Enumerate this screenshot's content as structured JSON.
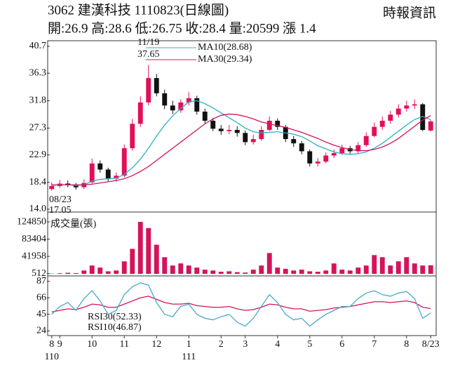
{
  "header": {
    "title": "3062  建漢科技 1110823(日線圖)",
    "source": "時報資訊",
    "info": "開:26.9 高:28.6 低:26.75 收:28.4 量:20599 漲 1.4"
  },
  "chart_data": [
    {
      "type": "candlestick",
      "up_color": "#e0105a",
      "down_color": "#111111",
      "ylim": [
        14.0,
        40.7
      ],
      "yticks": [
        {
          "value": 14.0,
          "label": "14.0"
        },
        18.4,
        22.9,
        27.3,
        31.8,
        36.3,
        40.7
      ],
      "open": [
        17.3,
        17.8,
        18.2,
        18.0,
        17.6,
        18.4,
        21.5,
        20.5,
        19.0,
        19.5,
        24.0,
        28.0,
        31.5,
        35.5,
        33.0,
        31.0,
        30.2,
        31.5,
        32.2,
        30.0,
        28.5,
        27.2,
        26.8,
        27.0,
        26.5,
        25.0,
        25.5,
        27.0,
        28.5,
        27.5,
        25.5,
        24.8,
        23.5,
        21.5,
        21.8,
        22.8,
        23.2,
        24.0,
        23.5,
        24.5,
        26.0,
        27.5,
        28.5,
        29.5,
        30.5,
        31.0,
        31.2,
        26.9
      ],
      "high": [
        18.4,
        18.8,
        18.7,
        18.3,
        18.9,
        22.3,
        22.0,
        20.8,
        20.0,
        24.6,
        28.8,
        32.5,
        37.65,
        36.2,
        33.6,
        31.8,
        32.0,
        33.2,
        32.6,
        30.5,
        29.0,
        27.8,
        27.8,
        27.6,
        26.9,
        26.2,
        27.6,
        29.2,
        28.9,
        27.8,
        26.0,
        25.2,
        23.8,
        22.4,
        23.3,
        23.8,
        24.6,
        24.4,
        25.0,
        26.6,
        28.2,
        29.2,
        30.1,
        31.2,
        31.8,
        32.0,
        31.4,
        28.6
      ],
      "low": [
        17.05,
        17.5,
        17.6,
        17.2,
        17.3,
        18.2,
        20.0,
        18.6,
        18.5,
        19.2,
        23.6,
        27.5,
        31.0,
        32.5,
        30.4,
        29.6,
        29.8,
        31.0,
        29.5,
        28.0,
        26.8,
        26.2,
        26.3,
        25.9,
        24.5,
        24.6,
        25.2,
        26.8,
        27.0,
        25.0,
        24.2,
        23.0,
        21.0,
        21.0,
        21.5,
        22.4,
        22.9,
        23.0,
        23.2,
        24.2,
        25.8,
        27.0,
        28.0,
        29.0,
        30.0,
        30.4,
        26.8,
        26.75
      ],
      "close": [
        17.8,
        18.2,
        18.0,
        17.6,
        18.3,
        21.5,
        20.5,
        19.0,
        19.5,
        24.0,
        28.0,
        31.5,
        35.5,
        33.0,
        31.0,
        30.2,
        31.5,
        32.2,
        30.0,
        28.5,
        27.2,
        26.8,
        27.0,
        26.5,
        25.0,
        25.5,
        27.0,
        28.5,
        27.5,
        25.5,
        24.8,
        23.5,
        21.5,
        21.8,
        22.8,
        23.2,
        24.0,
        23.5,
        24.5,
        26.0,
        27.5,
        28.5,
        29.5,
        30.5,
        31.0,
        31.2,
        27.0,
        28.4
      ],
      "series": [
        {
          "name": "MA10(28.68)",
          "color": "#2ab0c4",
          "values": [
            17.9,
            18.0,
            18.0,
            17.9,
            18.0,
            18.6,
            18.9,
            19.0,
            19.1,
            19.7,
            20.8,
            22.2,
            24.0,
            26.0,
            27.8,
            29.3,
            30.5,
            31.6,
            31.8,
            31.3,
            30.6,
            29.8,
            29.0,
            28.2,
            27.3,
            26.7,
            26.5,
            26.6,
            26.7,
            26.5,
            26.3,
            25.9,
            25.2,
            24.4,
            23.9,
            23.4,
            23.1,
            23.0,
            23.1,
            23.4,
            24.0,
            24.8,
            25.8,
            26.8,
            27.8,
            28.7,
            29.2,
            28.68
          ]
        },
        {
          "name": "MA30(29.34)",
          "color": "#d4145a",
          "values": [
            18.0,
            18.0,
            18.0,
            18.0,
            18.0,
            18.1,
            18.3,
            18.5,
            18.7,
            19.0,
            19.5,
            20.2,
            21.0,
            22.0,
            23.0,
            24.0,
            25.0,
            26.0,
            27.0,
            28.0,
            28.8,
            29.4,
            29.6,
            29.5,
            29.2,
            28.8,
            28.3,
            28.0,
            27.7,
            27.4,
            27.0,
            26.6,
            26.1,
            25.6,
            25.0,
            24.5,
            24.1,
            23.8,
            23.6,
            23.6,
            23.8,
            24.2,
            24.8,
            25.6,
            26.6,
            27.6,
            28.6,
            29.34
          ]
        }
      ],
      "annotations": [
        {
          "index": 12,
          "date": "11/19",
          "price": "37.65"
        },
        {
          "index": 0,
          "date": "08/23",
          "price": "17.05"
        }
      ]
    },
    {
      "type": "bar",
      "title": "成交量(張)",
      "color": "#d4145a",
      "ylim": [
        0,
        130000
      ],
      "yticks": [
        512,
        41958,
        83404,
        124850
      ],
      "values": [
        600,
        1500,
        2500,
        1800,
        8000,
        20000,
        15000,
        6000,
        8000,
        30000,
        60000,
        124850,
        110000,
        70000,
        40000,
        20000,
        25000,
        20000,
        15000,
        10000,
        8000,
        5000,
        6000,
        4000,
        3000,
        10000,
        20000,
        50000,
        15000,
        12000,
        8000,
        10000,
        6000,
        5000,
        8000,
        25000,
        10000,
        8000,
        15000,
        20000,
        45000,
        40000,
        20000,
        30000,
        40000,
        25000,
        20000,
        20599
      ]
    },
    {
      "type": "line",
      "ylim": [
        18,
        92
      ],
      "yticks": [
        24,
        45,
        66,
        87
      ],
      "series": [
        {
          "name": "RSI30(52.33)",
          "color": "#d4145a",
          "values": [
            48,
            50,
            52,
            51,
            54,
            58,
            57,
            54,
            54,
            58,
            62,
            66,
            68,
            64,
            60,
            58,
            58,
            59,
            56,
            55,
            54,
            54,
            55,
            52,
            50,
            51,
            54,
            58,
            57,
            54,
            52,
            52,
            49,
            50,
            51,
            53,
            54,
            55,
            57,
            59,
            61,
            61,
            60,
            61,
            62,
            60,
            54,
            52.33
          ]
        },
        {
          "name": "RSI10(46.87)",
          "color": "#4aa8d0",
          "values": [
            45,
            55,
            60,
            50,
            65,
            75,
            62,
            45,
            50,
            70,
            80,
            85,
            82,
            60,
            45,
            42,
            55,
            58,
            45,
            40,
            38,
            42,
            45,
            35,
            30,
            40,
            55,
            70,
            60,
            45,
            38,
            40,
            30,
            38,
            45,
            50,
            55,
            55,
            65,
            72,
            75,
            70,
            68,
            72,
            74,
            65,
            40,
            46.87
          ]
        }
      ],
      "xticks": [
        {
          "value": 0,
          "label": "8"
        },
        {
          "value": 1,
          "label": "9"
        },
        {
          "value": 5,
          "label": "10"
        },
        {
          "value": 9,
          "label": "11"
        },
        {
          "value": 13,
          "label": "12"
        },
        {
          "value": 17,
          "label": "1"
        },
        {
          "value": 21,
          "label": "2"
        },
        {
          "value": 24,
          "label": "3"
        },
        {
          "value": 28,
          "label": "4"
        },
        {
          "value": 32,
          "label": "5"
        },
        {
          "value": 36,
          "label": "6"
        },
        {
          "value": 40,
          "label": "7"
        },
        {
          "value": 44,
          "label": "8"
        },
        {
          "value": 47,
          "label": "8/23"
        }
      ],
      "years": [
        {
          "value": 0,
          "label": "110"
        },
        {
          "value": 17,
          "label": "111"
        }
      ]
    }
  ]
}
